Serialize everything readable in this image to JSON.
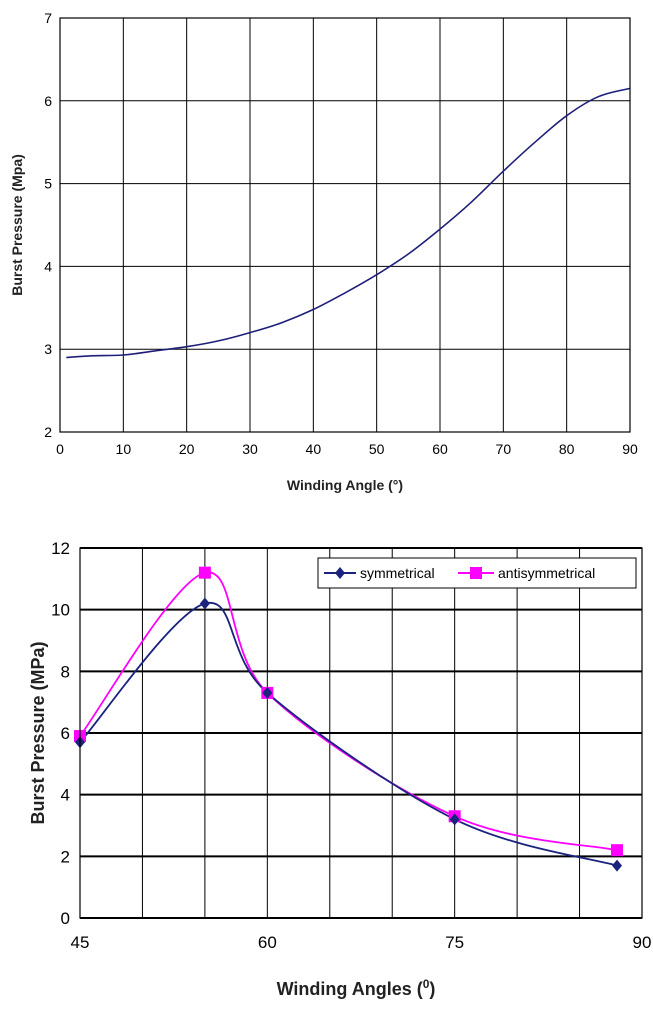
{
  "chart_data": [
    {
      "type": "line",
      "xlabel": "Winding Angle (°)",
      "ylabel": "Burst Pressure (Mpa)",
      "xlim": [
        0,
        90
      ],
      "ylim": [
        2,
        7
      ],
      "xticks": [
        "0",
        "10",
        "20",
        "30",
        "40",
        "50",
        "60",
        "70",
        "80",
        "90"
      ],
      "yticks": [
        "2",
        "3",
        "4",
        "5",
        "6",
        "7"
      ],
      "grid": true,
      "series": [
        {
          "color": "#1f1f7a",
          "x": [
            1,
            5,
            10,
            15,
            20,
            25,
            30,
            35,
            40,
            45,
            50,
            55,
            60,
            65,
            70,
            75,
            80,
            85,
            90
          ],
          "y": [
            2.9,
            2.92,
            2.93,
            2.98,
            3.03,
            3.1,
            3.2,
            3.32,
            3.48,
            3.68,
            3.9,
            4.15,
            4.45,
            4.78,
            5.15,
            5.5,
            5.82,
            6.05,
            6.15
          ]
        }
      ]
    },
    {
      "type": "line",
      "xlabel": "Winding Angles (0)",
      "ylabel": "Burst Pressure (MPa)",
      "xlim": [
        45,
        90
      ],
      "ylim": [
        0,
        12
      ],
      "xticks": [
        "45",
        "60",
        "75",
        "90"
      ],
      "yticks": [
        "0",
        "2",
        "4",
        "6",
        "8",
        "10",
        "12"
      ],
      "grid": true,
      "legend": "top-right",
      "series": [
        {
          "name": "symmetrical",
          "color": "#1a237e",
          "marker": "diamond",
          "x": [
            45,
            55,
            60,
            75,
            88
          ],
          "y": [
            5.7,
            10.2,
            7.3,
            3.2,
            1.7
          ]
        },
        {
          "name": "antisymmetrical",
          "color": "#ff00ff",
          "marker": "square",
          "x": [
            45,
            55,
            60,
            75,
            88
          ],
          "y": [
            5.9,
            11.2,
            7.3,
            3.3,
            2.2
          ]
        }
      ]
    }
  ]
}
